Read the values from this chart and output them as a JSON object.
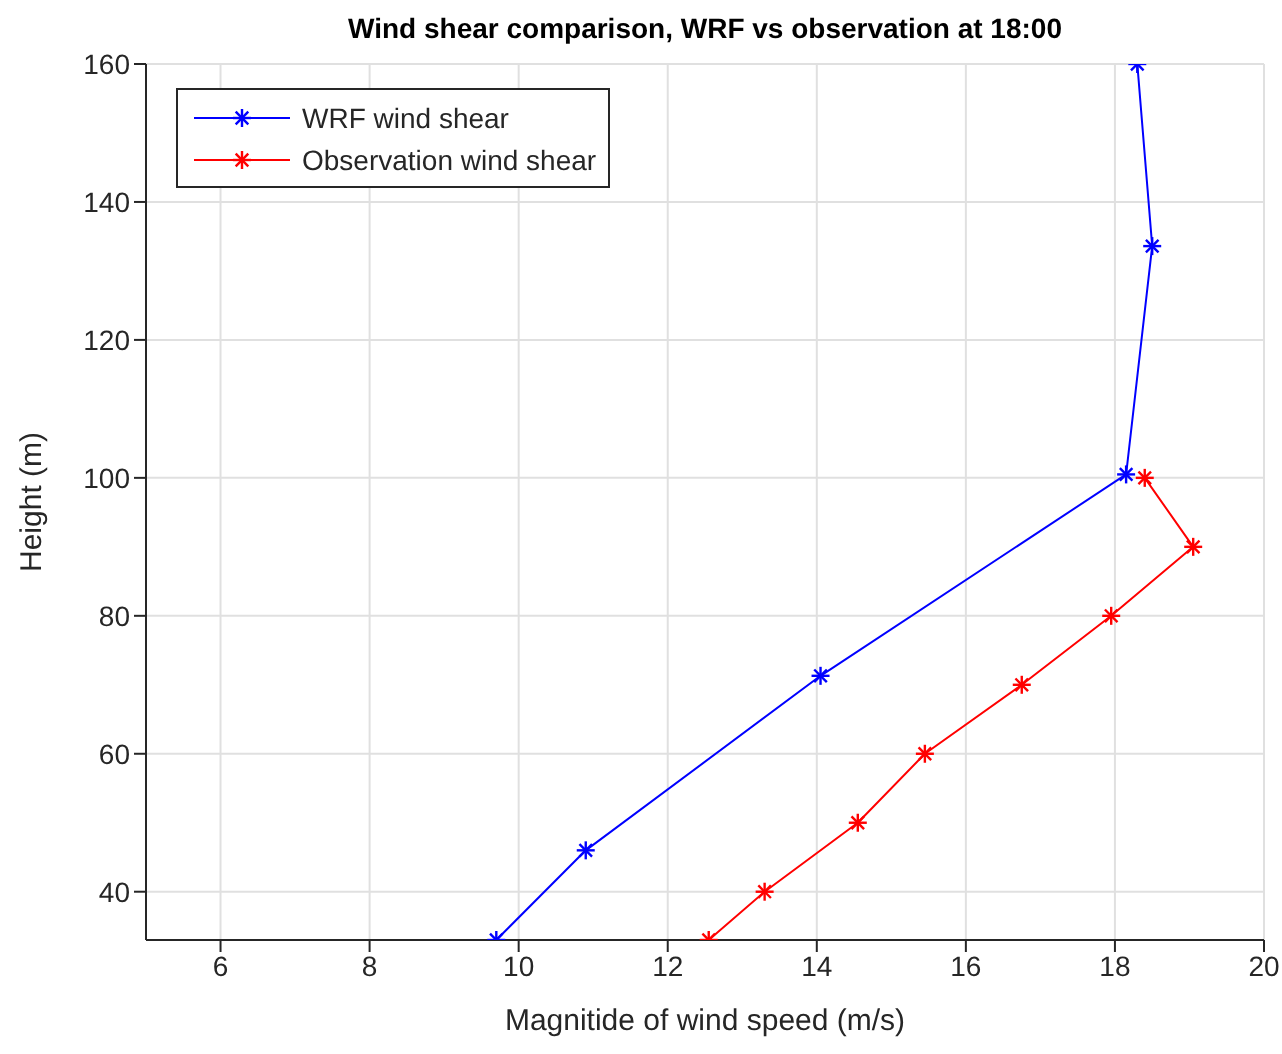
{
  "chart_data": {
    "type": "line",
    "title": "Wind shear comparison, WRF vs observation at 18:00",
    "xlabel": "Magnitide of wind speed (m/s)",
    "ylabel": "Height (m)",
    "series": [
      {
        "name": "WRF wind shear",
        "color": "#0000ff",
        "x": [
          9.7,
          10.9,
          14.05,
          18.15,
          18.5,
          18.3
        ],
        "values": [
          33,
          46,
          71.3,
          100.5,
          133.6,
          160
        ]
      },
      {
        "name": "Observation wind shear",
        "color": "#ff0000",
        "x": [
          12.55,
          13.3,
          14.55,
          15.45,
          16.75,
          17.95,
          19.05,
          18.4
        ],
        "values": [
          33,
          40,
          50,
          60,
          70,
          80,
          90,
          100
        ]
      }
    ],
    "xlim": [
      5,
      20
    ],
    "xticks": [
      6,
      8,
      10,
      12,
      14,
      16,
      18,
      20
    ],
    "ylim": [
      33,
      160
    ],
    "yticks": [
      40,
      60,
      80,
      100,
      120,
      140,
      160
    ],
    "grid": true,
    "legend": "top left",
    "marker": "cross",
    "line_style": "solid"
  }
}
